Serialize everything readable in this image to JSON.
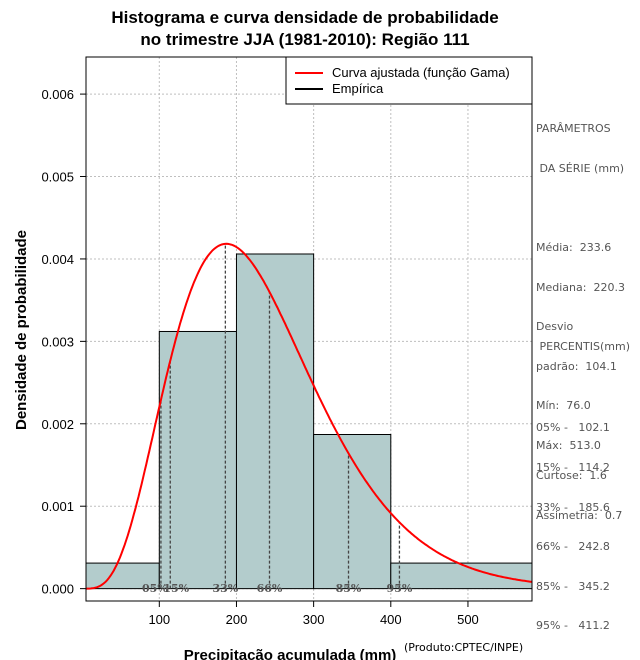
{
  "chart_data": {
    "type": "bar",
    "title_line1": "Histograma e curva densidade de probabilidade",
    "title_line2": "no trimestre JJA (1981-2010): Região 111",
    "xlabel": "Precipitação acumulada (mm)",
    "ylabel": "Densidade de probabilidade",
    "credit": "(Produto:CPTEC/INPE)",
    "xlim": [
      5,
      583
    ],
    "ylim": [
      -0.00015,
      0.00645
    ],
    "x_ticks": [
      100,
      200,
      300,
      400,
      500
    ],
    "y_ticks": [
      0.0,
      0.001,
      0.002,
      0.003,
      0.004,
      0.005,
      0.006
    ],
    "y_tick_labels": [
      "0.000",
      "0.001",
      "0.002",
      "0.003",
      "0.004",
      "0.005",
      "0.006"
    ],
    "histogram": {
      "bin_edges": [
        0,
        100,
        200,
        300,
        400,
        600
      ],
      "values": [
        0.00031,
        0.00312,
        0.00406,
        0.00187,
        0.00031
      ]
    },
    "gamma_fit": {
      "shape": 5.0,
      "scale": 46.7
    },
    "legend": [
      {
        "label": "Curva ajustada (função Gama)",
        "color": "#ff0000"
      },
      {
        "label": "Empírica",
        "color": "#000000"
      }
    ],
    "percentile_markers": [
      {
        "label": "05%",
        "value": 102.1
      },
      {
        "label": "15%",
        "value": 114.2
      },
      {
        "label": "33%",
        "value": 185.6
      },
      {
        "label": "66%",
        "value": 242.8
      },
      {
        "label": "85%",
        "value": 345.2
      },
      {
        "label": "95%",
        "value": 411.2
      }
    ],
    "bar_color": "#b3cccc",
    "curve_color": "#ff0000"
  },
  "stats": {
    "header1": "PARÂMETROS",
    "header2": " DA SÉRIE (mm)",
    "lines": [
      "Média:  233.6",
      "Mediana:  220.3",
      "Desvio",
      "padrão:  104.1",
      "Mín:  76.0",
      "Máx:  513.0"
    ]
  },
  "percentis": {
    "header": " PERCENTIS(mm)",
    "lines": [
      "05% -   102.1",
      "15% -   114.2",
      "33% -   185.6",
      "66% -   242.8",
      "85% -   345.2",
      "95% -   411.2"
    ]
  },
  "shape": {
    "lines": [
      "Curtose:  1.6",
      "Assimetria:  0.7"
    ]
  }
}
